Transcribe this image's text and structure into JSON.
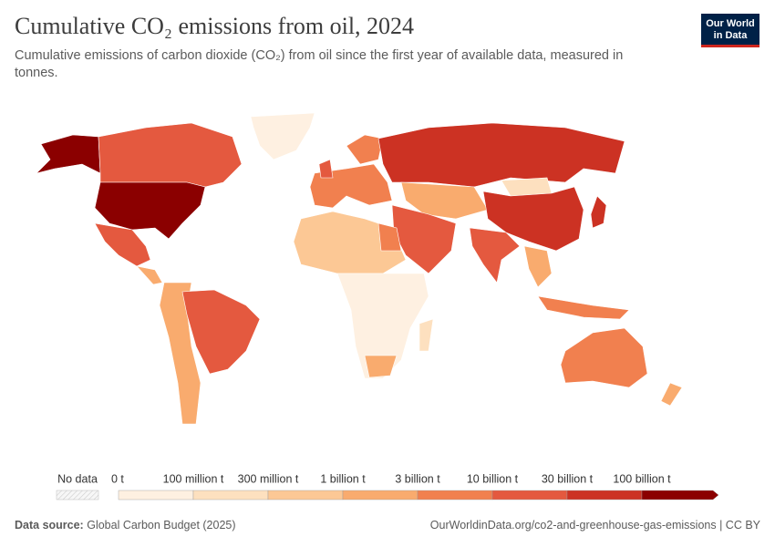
{
  "header": {
    "title": "Cumulative CO₂ emissions from oil, 2024",
    "subtitle": "Cumulative emissions of carbon dioxide (CO₂) from oil since the first year of available data, measured in tonnes.",
    "logo": [
      "Our World",
      "in Data"
    ]
  },
  "legend": {
    "no_data_label": "No data",
    "ticks": [
      "0 t",
      "100 million t",
      "300 million t",
      "1 billion t",
      "3 billion t",
      "10 billion t",
      "30 billion t",
      "100 billion t"
    ],
    "colors": [
      "#fef0e1",
      "#fde0bf",
      "#fcc895",
      "#f9ab6e",
      "#f1804f",
      "#e4593f",
      "#cc3223",
      "#8b0000"
    ]
  },
  "footer": {
    "source_label": "Data source:",
    "source": "Global Carbon Budget (2025)",
    "url": "OurWorldinData.org/co2-and-greenhouse-gas-emissions | CC BY"
  }
}
